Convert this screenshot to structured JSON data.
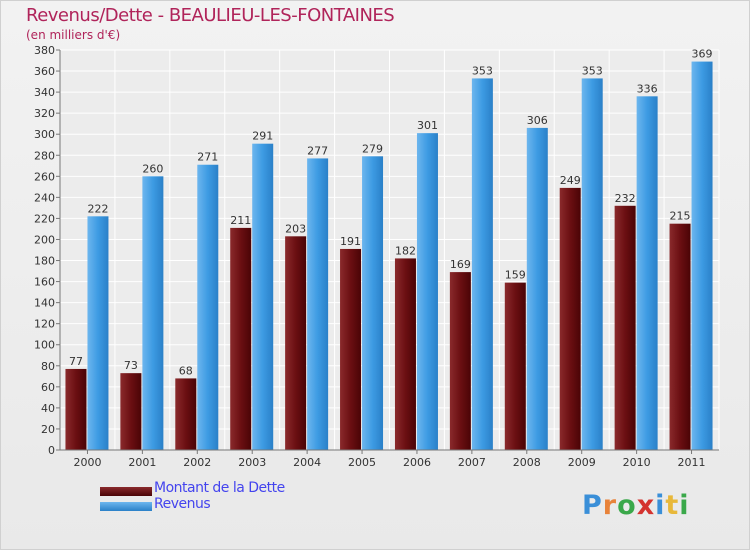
{
  "title": "Revenus/Dette - BEAULIEU-LES-FONTAINES",
  "subtitle": "(en milliers d'€)",
  "logo": {
    "text": "Proxiti",
    "letter_colors": [
      "#3a8fd8",
      "#e8833a",
      "#3aa84a",
      "#d4332f",
      "#3a8fd8",
      "#e8b83a",
      "#3aa84a"
    ]
  },
  "legend": [
    {
      "label": "Montant de la Dette",
      "color": "#6b0f12"
    },
    {
      "label": "Revenus",
      "color": "#3d9be3"
    }
  ],
  "chart_data": {
    "type": "bar",
    "title": "Revenus/Dette - BEAULIEU-LES-FONTAINES",
    "subtitle": "(en milliers d'€)",
    "xlabel": "",
    "ylabel": "",
    "categories": [
      "2000",
      "2001",
      "2002",
      "2003",
      "2004",
      "2005",
      "2006",
      "2007",
      "2008",
      "2009",
      "2010",
      "2011"
    ],
    "series": [
      {
        "name": "Montant de la Dette",
        "color": "#6b0f12",
        "values": [
          77,
          73,
          68,
          211,
          203,
          191,
          182,
          169,
          159,
          249,
          232,
          215
        ]
      },
      {
        "name": "Revenus",
        "color": "#3d9be3",
        "values": [
          222,
          260,
          271,
          291,
          277,
          279,
          301,
          353,
          306,
          353,
          336,
          369
        ]
      }
    ],
    "ylim": [
      0,
      380
    ],
    "yticks": [
      0,
      20,
      40,
      60,
      80,
      100,
      120,
      140,
      160,
      180,
      200,
      220,
      240,
      260,
      280,
      300,
      320,
      340,
      360,
      380
    ],
    "grid": true,
    "legend_position": "bottom-left"
  }
}
